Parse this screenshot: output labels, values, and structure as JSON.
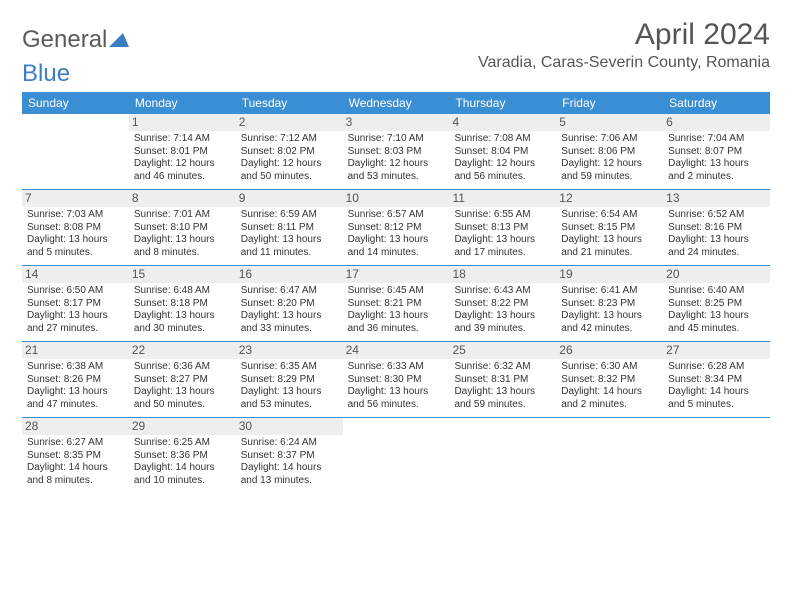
{
  "brand": {
    "part1": "General",
    "part2": "Blue"
  },
  "title": "April 2024",
  "location": "Varadia, Caras-Severin County, Romania",
  "colors": {
    "header_bg": "#3a8fd4",
    "header_text": "#ffffff",
    "border": "#3a8fd4",
    "daynum_bg": "#eeeeee",
    "text": "#333333",
    "brand_gray": "#5a5a5a",
    "brand_blue": "#3a7fc4"
  },
  "day_names": [
    "Sunday",
    "Monday",
    "Tuesday",
    "Wednesday",
    "Thursday",
    "Friday",
    "Saturday"
  ],
  "weeks": [
    [
      {
        "day": "",
        "sunrise": "",
        "sunset": "",
        "daylight1": "",
        "daylight2": ""
      },
      {
        "day": "1",
        "sunrise": "Sunrise: 7:14 AM",
        "sunset": "Sunset: 8:01 PM",
        "daylight1": "Daylight: 12 hours",
        "daylight2": "and 46 minutes."
      },
      {
        "day": "2",
        "sunrise": "Sunrise: 7:12 AM",
        "sunset": "Sunset: 8:02 PM",
        "daylight1": "Daylight: 12 hours",
        "daylight2": "and 50 minutes."
      },
      {
        "day": "3",
        "sunrise": "Sunrise: 7:10 AM",
        "sunset": "Sunset: 8:03 PM",
        "daylight1": "Daylight: 12 hours",
        "daylight2": "and 53 minutes."
      },
      {
        "day": "4",
        "sunrise": "Sunrise: 7:08 AM",
        "sunset": "Sunset: 8:04 PM",
        "daylight1": "Daylight: 12 hours",
        "daylight2": "and 56 minutes."
      },
      {
        "day": "5",
        "sunrise": "Sunrise: 7:06 AM",
        "sunset": "Sunset: 8:06 PM",
        "daylight1": "Daylight: 12 hours",
        "daylight2": "and 59 minutes."
      },
      {
        "day": "6",
        "sunrise": "Sunrise: 7:04 AM",
        "sunset": "Sunset: 8:07 PM",
        "daylight1": "Daylight: 13 hours",
        "daylight2": "and 2 minutes."
      }
    ],
    [
      {
        "day": "7",
        "sunrise": "Sunrise: 7:03 AM",
        "sunset": "Sunset: 8:08 PM",
        "daylight1": "Daylight: 13 hours",
        "daylight2": "and 5 minutes."
      },
      {
        "day": "8",
        "sunrise": "Sunrise: 7:01 AM",
        "sunset": "Sunset: 8:10 PM",
        "daylight1": "Daylight: 13 hours",
        "daylight2": "and 8 minutes."
      },
      {
        "day": "9",
        "sunrise": "Sunrise: 6:59 AM",
        "sunset": "Sunset: 8:11 PM",
        "daylight1": "Daylight: 13 hours",
        "daylight2": "and 11 minutes."
      },
      {
        "day": "10",
        "sunrise": "Sunrise: 6:57 AM",
        "sunset": "Sunset: 8:12 PM",
        "daylight1": "Daylight: 13 hours",
        "daylight2": "and 14 minutes."
      },
      {
        "day": "11",
        "sunrise": "Sunrise: 6:55 AM",
        "sunset": "Sunset: 8:13 PM",
        "daylight1": "Daylight: 13 hours",
        "daylight2": "and 17 minutes."
      },
      {
        "day": "12",
        "sunrise": "Sunrise: 6:54 AM",
        "sunset": "Sunset: 8:15 PM",
        "daylight1": "Daylight: 13 hours",
        "daylight2": "and 21 minutes."
      },
      {
        "day": "13",
        "sunrise": "Sunrise: 6:52 AM",
        "sunset": "Sunset: 8:16 PM",
        "daylight1": "Daylight: 13 hours",
        "daylight2": "and 24 minutes."
      }
    ],
    [
      {
        "day": "14",
        "sunrise": "Sunrise: 6:50 AM",
        "sunset": "Sunset: 8:17 PM",
        "daylight1": "Daylight: 13 hours",
        "daylight2": "and 27 minutes."
      },
      {
        "day": "15",
        "sunrise": "Sunrise: 6:48 AM",
        "sunset": "Sunset: 8:18 PM",
        "daylight1": "Daylight: 13 hours",
        "daylight2": "and 30 minutes."
      },
      {
        "day": "16",
        "sunrise": "Sunrise: 6:47 AM",
        "sunset": "Sunset: 8:20 PM",
        "daylight1": "Daylight: 13 hours",
        "daylight2": "and 33 minutes."
      },
      {
        "day": "17",
        "sunrise": "Sunrise: 6:45 AM",
        "sunset": "Sunset: 8:21 PM",
        "daylight1": "Daylight: 13 hours",
        "daylight2": "and 36 minutes."
      },
      {
        "day": "18",
        "sunrise": "Sunrise: 6:43 AM",
        "sunset": "Sunset: 8:22 PM",
        "daylight1": "Daylight: 13 hours",
        "daylight2": "and 39 minutes."
      },
      {
        "day": "19",
        "sunrise": "Sunrise: 6:41 AM",
        "sunset": "Sunset: 8:23 PM",
        "daylight1": "Daylight: 13 hours",
        "daylight2": "and 42 minutes."
      },
      {
        "day": "20",
        "sunrise": "Sunrise: 6:40 AM",
        "sunset": "Sunset: 8:25 PM",
        "daylight1": "Daylight: 13 hours",
        "daylight2": "and 45 minutes."
      }
    ],
    [
      {
        "day": "21",
        "sunrise": "Sunrise: 6:38 AM",
        "sunset": "Sunset: 8:26 PM",
        "daylight1": "Daylight: 13 hours",
        "daylight2": "and 47 minutes."
      },
      {
        "day": "22",
        "sunrise": "Sunrise: 6:36 AM",
        "sunset": "Sunset: 8:27 PM",
        "daylight1": "Daylight: 13 hours",
        "daylight2": "and 50 minutes."
      },
      {
        "day": "23",
        "sunrise": "Sunrise: 6:35 AM",
        "sunset": "Sunset: 8:29 PM",
        "daylight1": "Daylight: 13 hours",
        "daylight2": "and 53 minutes."
      },
      {
        "day": "24",
        "sunrise": "Sunrise: 6:33 AM",
        "sunset": "Sunset: 8:30 PM",
        "daylight1": "Daylight: 13 hours",
        "daylight2": "and 56 minutes."
      },
      {
        "day": "25",
        "sunrise": "Sunrise: 6:32 AM",
        "sunset": "Sunset: 8:31 PM",
        "daylight1": "Daylight: 13 hours",
        "daylight2": "and 59 minutes."
      },
      {
        "day": "26",
        "sunrise": "Sunrise: 6:30 AM",
        "sunset": "Sunset: 8:32 PM",
        "daylight1": "Daylight: 14 hours",
        "daylight2": "and 2 minutes."
      },
      {
        "day": "27",
        "sunrise": "Sunrise: 6:28 AM",
        "sunset": "Sunset: 8:34 PM",
        "daylight1": "Daylight: 14 hours",
        "daylight2": "and 5 minutes."
      }
    ],
    [
      {
        "day": "28",
        "sunrise": "Sunrise: 6:27 AM",
        "sunset": "Sunset: 8:35 PM",
        "daylight1": "Daylight: 14 hours",
        "daylight2": "and 8 minutes."
      },
      {
        "day": "29",
        "sunrise": "Sunrise: 6:25 AM",
        "sunset": "Sunset: 8:36 PM",
        "daylight1": "Daylight: 14 hours",
        "daylight2": "and 10 minutes."
      },
      {
        "day": "30",
        "sunrise": "Sunrise: 6:24 AM",
        "sunset": "Sunset: 8:37 PM",
        "daylight1": "Daylight: 14 hours",
        "daylight2": "and 13 minutes."
      },
      {
        "day": "",
        "sunrise": "",
        "sunset": "",
        "daylight1": "",
        "daylight2": ""
      },
      {
        "day": "",
        "sunrise": "",
        "sunset": "",
        "daylight1": "",
        "daylight2": ""
      },
      {
        "day": "",
        "sunrise": "",
        "sunset": "",
        "daylight1": "",
        "daylight2": ""
      },
      {
        "day": "",
        "sunrise": "",
        "sunset": "",
        "daylight1": "",
        "daylight2": ""
      }
    ]
  ]
}
